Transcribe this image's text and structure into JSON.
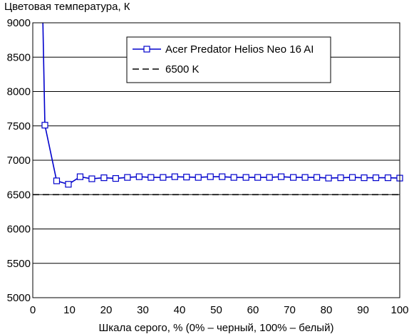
{
  "chart_data": {
    "type": "line",
    "title": "",
    "ylabel": "Цветовая температура, К",
    "xlabel": "Шкала серого, % (0% – черный, 100% – белый)",
    "xlim": [
      0,
      100
    ],
    "ylim": [
      5000,
      9000
    ],
    "xticks": [
      "0",
      "10",
      "20",
      "30",
      "40",
      "50",
      "60",
      "70",
      "80",
      "90",
      "100"
    ],
    "yticks": [
      "5000",
      "5500",
      "6000",
      "6500",
      "7000",
      "7500",
      "8000",
      "8500",
      "9000"
    ],
    "grid": "horizontal",
    "legend_position": "top-center",
    "series": [
      {
        "name": "Acer Predator Helios Neo 16 AI",
        "color": "#0000cc",
        "marker": "square",
        "style": "solid",
        "x": [
          2.75,
          3.3,
          6.5,
          9.7,
          12.9,
          16.1,
          19.4,
          22.6,
          25.8,
          29.0,
          32.2,
          35.5,
          38.7,
          41.9,
          45.1,
          48.4,
          51.6,
          54.8,
          58.1,
          61.3,
          64.5,
          67.7,
          71.0,
          74.2,
          77.4,
          80.6,
          83.9,
          87.1,
          90.3,
          93.5,
          96.8,
          100
        ],
        "y": [
          9000,
          7510,
          6700,
          6650,
          6760,
          6730,
          6745,
          6735,
          6750,
          6760,
          6750,
          6750,
          6760,
          6755,
          6750,
          6760,
          6760,
          6750,
          6750,
          6750,
          6750,
          6760,
          6750,
          6750,
          6750,
          6740,
          6745,
          6750,
          6745,
          6745,
          6745,
          6740
        ],
        "markers_from_index": 1
      },
      {
        "name": "6500 K",
        "color": "#000000",
        "style": "dashed",
        "x": [
          0,
          100
        ],
        "y": [
          6500,
          6500
        ]
      }
    ]
  }
}
